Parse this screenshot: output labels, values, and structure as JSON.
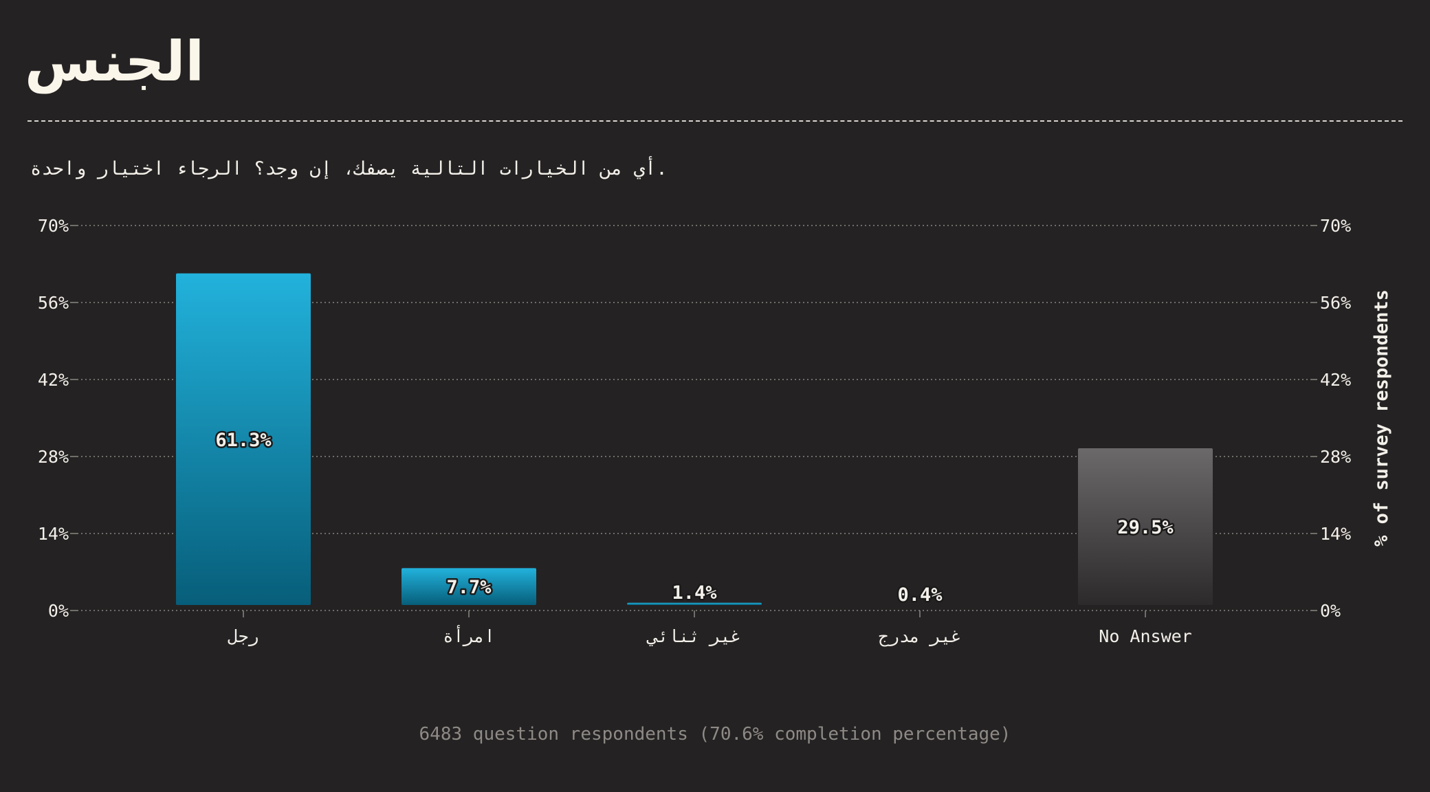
{
  "title": "الجنس",
  "subtitle": "أي من الخيارات التالية يصفك، إن وجد؟ الرجاء اختيار واحدة.",
  "footer": "6483 question respondents (70.6% completion percentage)",
  "colors": {
    "background": "#252223",
    "bar_top": "#22b2dc",
    "bar_bottom": "#075e7a",
    "no_answer_top": "#6b6969",
    "no_answer_bottom": "#2c2a2a",
    "grid": "#8a8783",
    "text": "#f3f0ea"
  },
  "chart_data": {
    "type": "bar",
    "categories": [
      "رجل",
      "امرأة",
      "غير ثنائي",
      "غير مدرج",
      "No Answer"
    ],
    "values": [
      61.3,
      7.7,
      1.4,
      0.4,
      29.5
    ],
    "value_labels": [
      "61.3%",
      "7.7%",
      "1.4%",
      "0.4%",
      "29.5%"
    ],
    "ylabel": "% of survey respondents",
    "ylim": [
      0,
      70
    ],
    "yticks": [
      0,
      14,
      28,
      42,
      56,
      70
    ],
    "ytick_labels": [
      "0%",
      "14%",
      "28%",
      "42%",
      "56%",
      "70%"
    ],
    "grid": true,
    "highlight_last_category": true
  }
}
